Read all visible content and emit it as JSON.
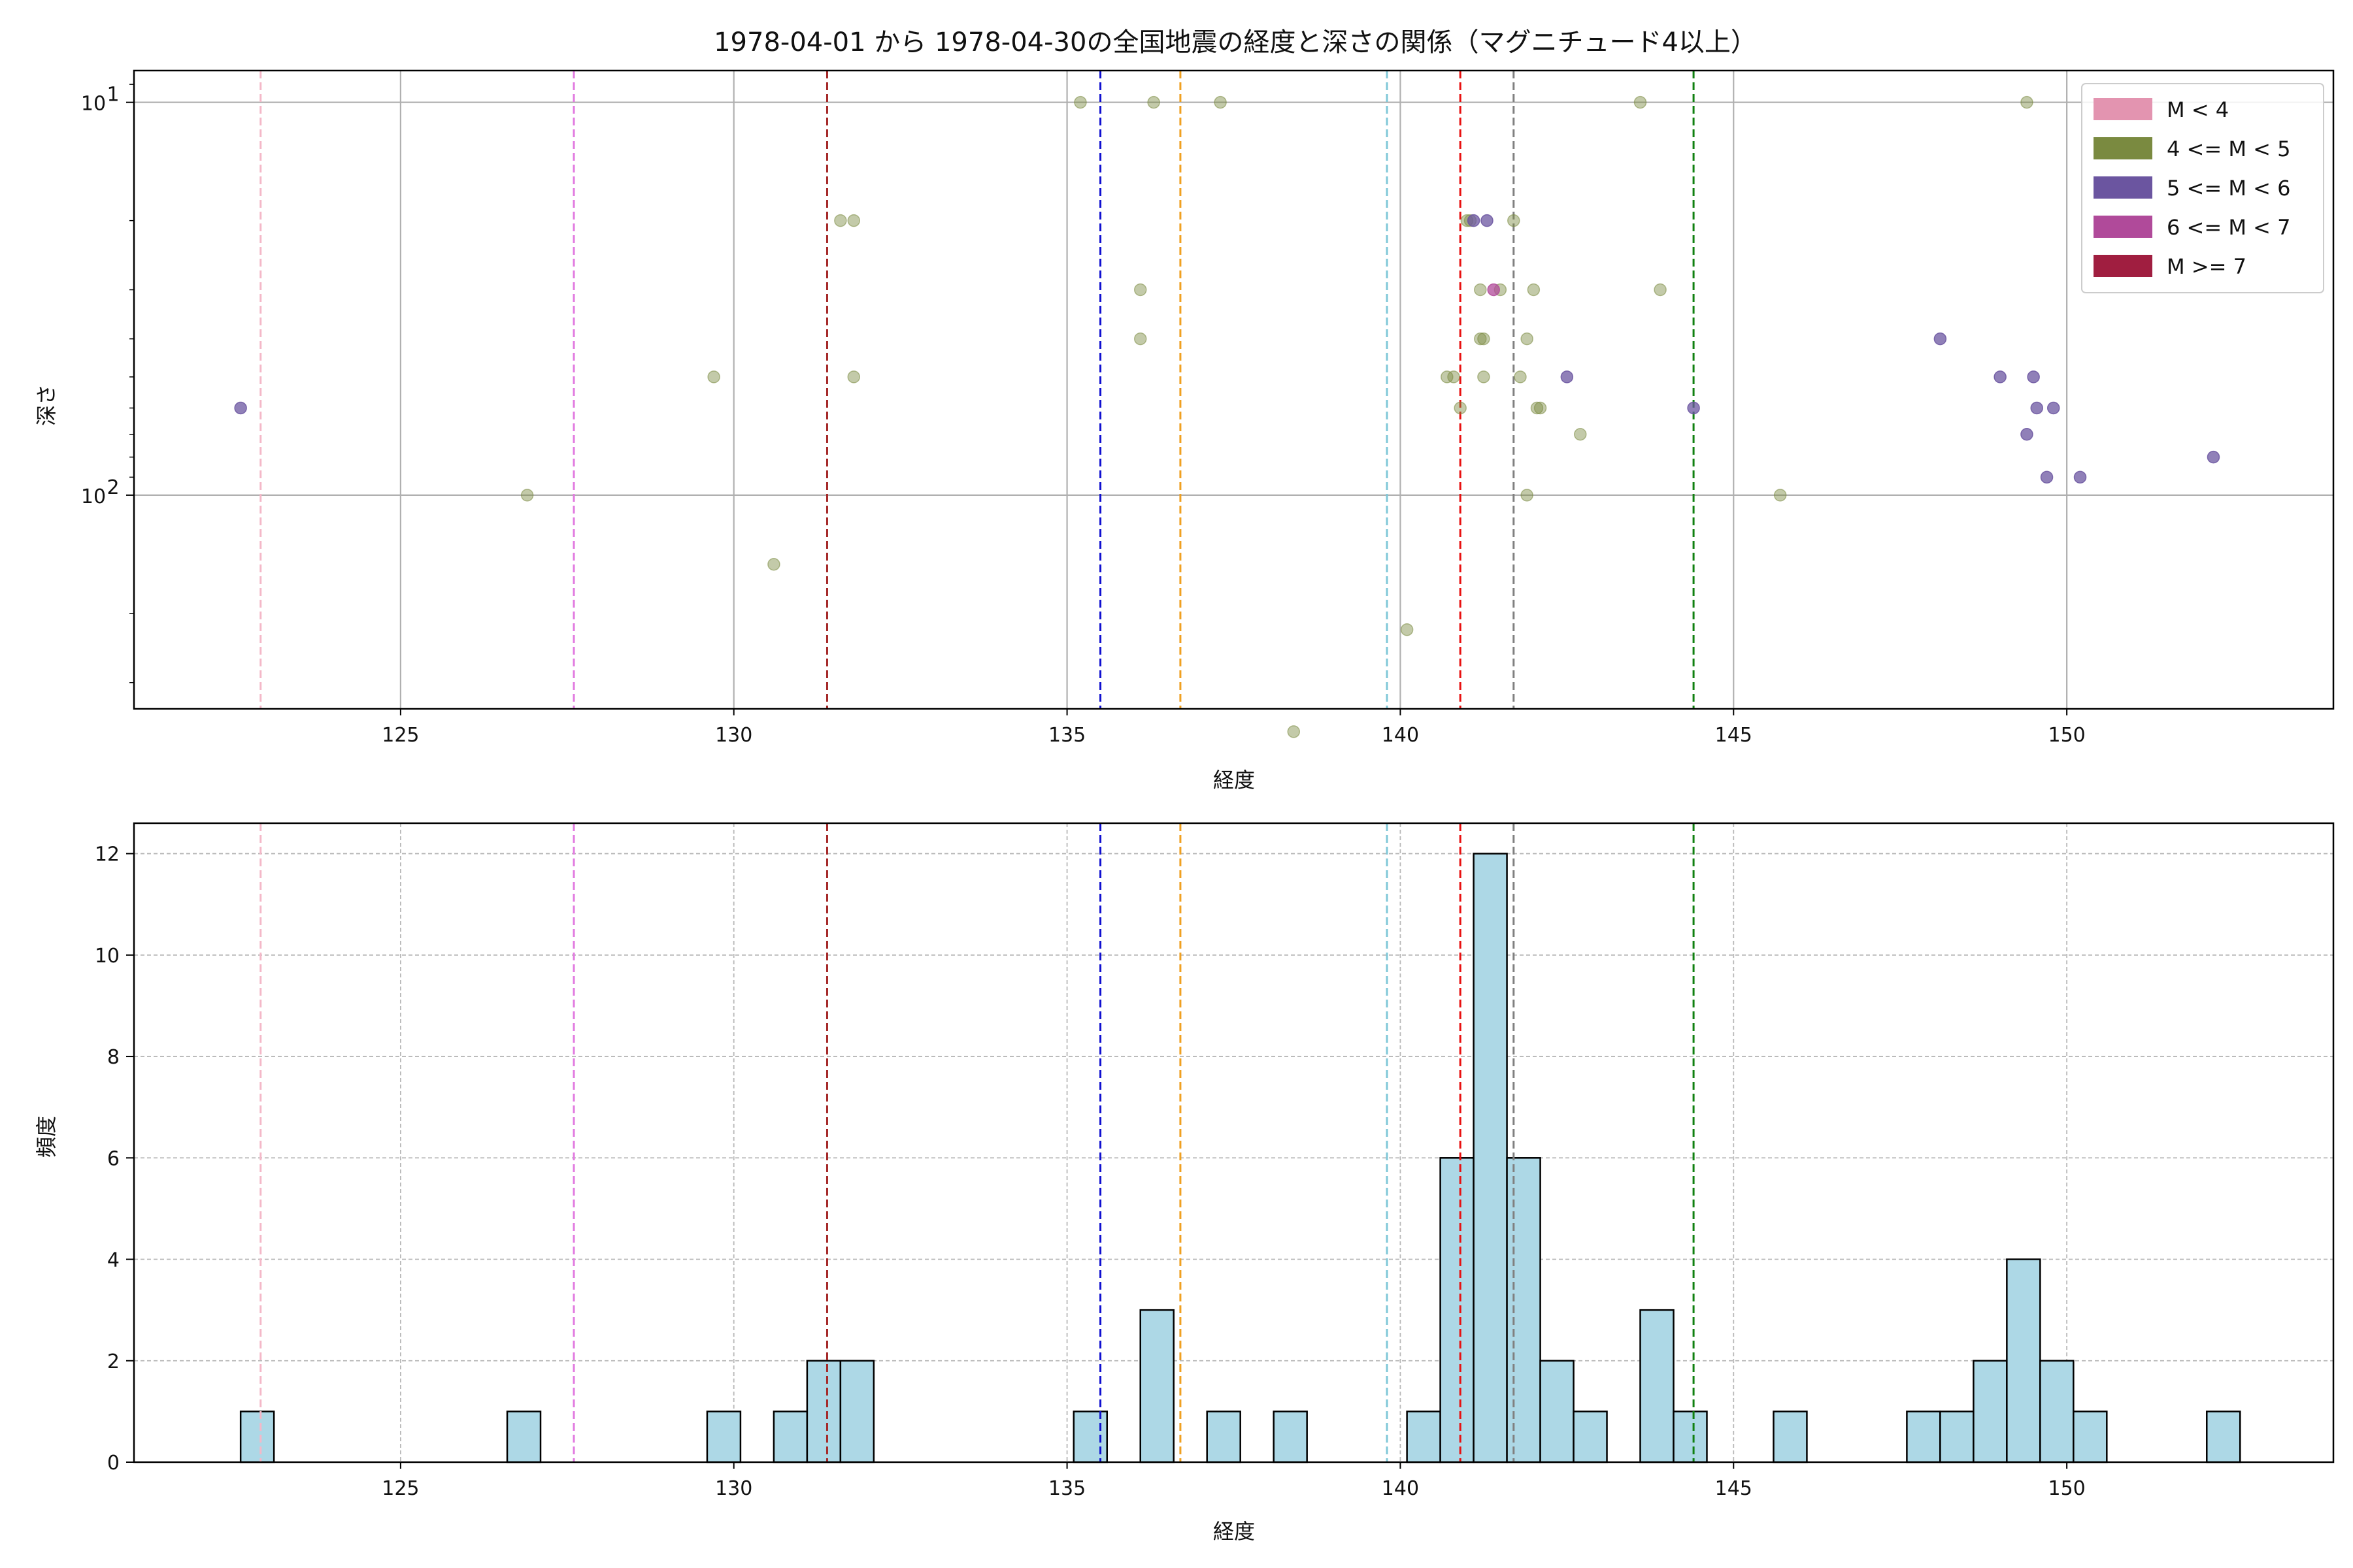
{
  "chart_data": [
    {
      "type": "scatter",
      "title": "1978-04-01 から 1978-04-30の全国地震の経度と深さの関係（マグニチュード4以上）",
      "xlabel": "経度",
      "ylabel": "深さ",
      "xlim": [
        121,
        154
      ],
      "ylim": [
        350,
        8.3
      ],
      "yscale": "log",
      "y_inverted": true,
      "xticks": [
        125,
        130,
        135,
        140,
        145,
        150
      ],
      "yticks": [
        {
          "value": 10,
          "label": "10",
          "sup": "1"
        },
        {
          "value": 100,
          "label": "10",
          "sup": "2"
        }
      ],
      "grid": true,
      "legend_position": "top-right",
      "legend": [
        {
          "label": "M < 4",
          "color": "#e394b0"
        },
        {
          "label": "4 <= M < 5",
          "color": "#7a8a40"
        },
        {
          "label": "5 <= M < 6",
          "color": "#6b55a0"
        },
        {
          "label": "6 <= M < 7",
          "color": "#b04a9a"
        },
        {
          "label": "M >= 7",
          "color": "#a01e40"
        }
      ],
      "vlines": [
        {
          "x": 122.9,
          "color": "#f4b8c8"
        },
        {
          "x": 127.6,
          "color": "#e27be0"
        },
        {
          "x": 131.4,
          "color": "#a52a2a"
        },
        {
          "x": 135.5,
          "color": "#1010d0"
        },
        {
          "x": 136.7,
          "color": "#f0a020"
        },
        {
          "x": 139.8,
          "color": "#80c8d8"
        },
        {
          "x": 140.9,
          "color": "#e81010"
        },
        {
          "x": 141.7,
          "color": "#808080"
        },
        {
          "x": 144.4,
          "color": "#108010"
        }
      ],
      "series": [
        {
          "name": "4 <= M < 5",
          "color": "#7a8a40",
          "opacity": 0.45,
          "points": [
            [
              126.9,
              100
            ],
            [
              129.7,
              50
            ],
            [
              130.6,
              150
            ],
            [
              131.6,
              20
            ],
            [
              131.8,
              20
            ],
            [
              131.8,
              50
            ],
            [
              135.2,
              10
            ],
            [
              136.1,
              30
            ],
            [
              136.1,
              40
            ],
            [
              136.3,
              10
            ],
            [
              137.3,
              10
            ],
            [
              138.4,
              400
            ],
            [
              140.1,
              220
            ],
            [
              140.7,
              50
            ],
            [
              140.8,
              50
            ],
            [
              140.9,
              60
            ],
            [
              141.0,
              20
            ],
            [
              141.05,
              20
            ],
            [
              141.2,
              30
            ],
            [
              141.2,
              40
            ],
            [
              141.25,
              40
            ],
            [
              141.25,
              50
            ],
            [
              141.5,
              30
            ],
            [
              141.7,
              20
            ],
            [
              141.8,
              50
            ],
            [
              141.9,
              100
            ],
            [
              141.9,
              40
            ],
            [
              142.0,
              30
            ],
            [
              142.05,
              60
            ],
            [
              142.1,
              60
            ],
            [
              142.7,
              70
            ],
            [
              143.6,
              10
            ],
            [
              143.9,
              30
            ],
            [
              145.7,
              100
            ],
            [
              149.4,
              10
            ]
          ]
        },
        {
          "name": "5 <= M < 6",
          "color": "#6b55a0",
          "opacity": 0.75,
          "points": [
            [
              122.6,
              60
            ],
            [
              141.1,
              20
            ],
            [
              141.3,
              20
            ],
            [
              142.5,
              50
            ],
            [
              144.4,
              60
            ],
            [
              148.1,
              40
            ],
            [
              149.0,
              50
            ],
            [
              149.4,
              70
            ],
            [
              149.5,
              50
            ],
            [
              149.55,
              60
            ],
            [
              149.7,
              90
            ],
            [
              149.8,
              60
            ],
            [
              150.2,
              90
            ],
            [
              152.2,
              80
            ]
          ]
        },
        {
          "name": "6 <= M < 7",
          "color": "#b04a9a",
          "opacity": 0.75,
          "points": [
            [
              141.4,
              30
            ]
          ]
        }
      ]
    },
    {
      "type": "bar",
      "title": "",
      "xlabel": "経度",
      "ylabel": "頻度",
      "xlim": [
        121,
        154
      ],
      "ylim": [
        0,
        12.6
      ],
      "xticks": [
        125,
        130,
        135,
        140,
        145,
        150
      ],
      "yticks": [
        0,
        2,
        4,
        6,
        8,
        10,
        12
      ],
      "grid": true,
      "bar_color": "#add8e6",
      "edge_color": "#000000",
      "bin_width": 0.5,
      "bins": [
        {
          "x0": 122.6,
          "count": 1
        },
        {
          "x0": 126.6,
          "count": 1
        },
        {
          "x0": 129.6,
          "count": 1
        },
        {
          "x0": 130.6,
          "count": 1
        },
        {
          "x0": 131.1,
          "count": 2
        },
        {
          "x0": 131.6,
          "count": 2
        },
        {
          "x0": 135.1,
          "count": 1
        },
        {
          "x0": 136.1,
          "count": 3
        },
        {
          "x0": 137.1,
          "count": 1
        },
        {
          "x0": 138.1,
          "count": 1
        },
        {
          "x0": 140.1,
          "count": 1
        },
        {
          "x0": 140.6,
          "count": 6
        },
        {
          "x0": 141.1,
          "count": 12
        },
        {
          "x0": 141.6,
          "count": 6
        },
        {
          "x0": 142.1,
          "count": 2
        },
        {
          "x0": 142.6,
          "count": 1
        },
        {
          "x0": 143.6,
          "count": 3
        },
        {
          "x0": 144.1,
          "count": 1
        },
        {
          "x0": 145.6,
          "count": 1
        },
        {
          "x0": 147.6,
          "count": 1
        },
        {
          "x0": 148.1,
          "count": 1
        },
        {
          "x0": 148.6,
          "count": 2
        },
        {
          "x0": 149.1,
          "count": 4
        },
        {
          "x0": 149.6,
          "count": 2
        },
        {
          "x0": 150.1,
          "count": 1
        },
        {
          "x0": 152.1,
          "count": 1
        }
      ],
      "vlines": [
        {
          "x": 122.9,
          "color": "#f4b8c8"
        },
        {
          "x": 127.6,
          "color": "#e27be0"
        },
        {
          "x": 131.4,
          "color": "#a52a2a"
        },
        {
          "x": 135.5,
          "color": "#1010d0"
        },
        {
          "x": 136.7,
          "color": "#f0a020"
        },
        {
          "x": 139.8,
          "color": "#80c8d8"
        },
        {
          "x": 140.9,
          "color": "#e81010"
        },
        {
          "x": 141.7,
          "color": "#808080"
        },
        {
          "x": 144.4,
          "color": "#108010"
        }
      ]
    }
  ]
}
